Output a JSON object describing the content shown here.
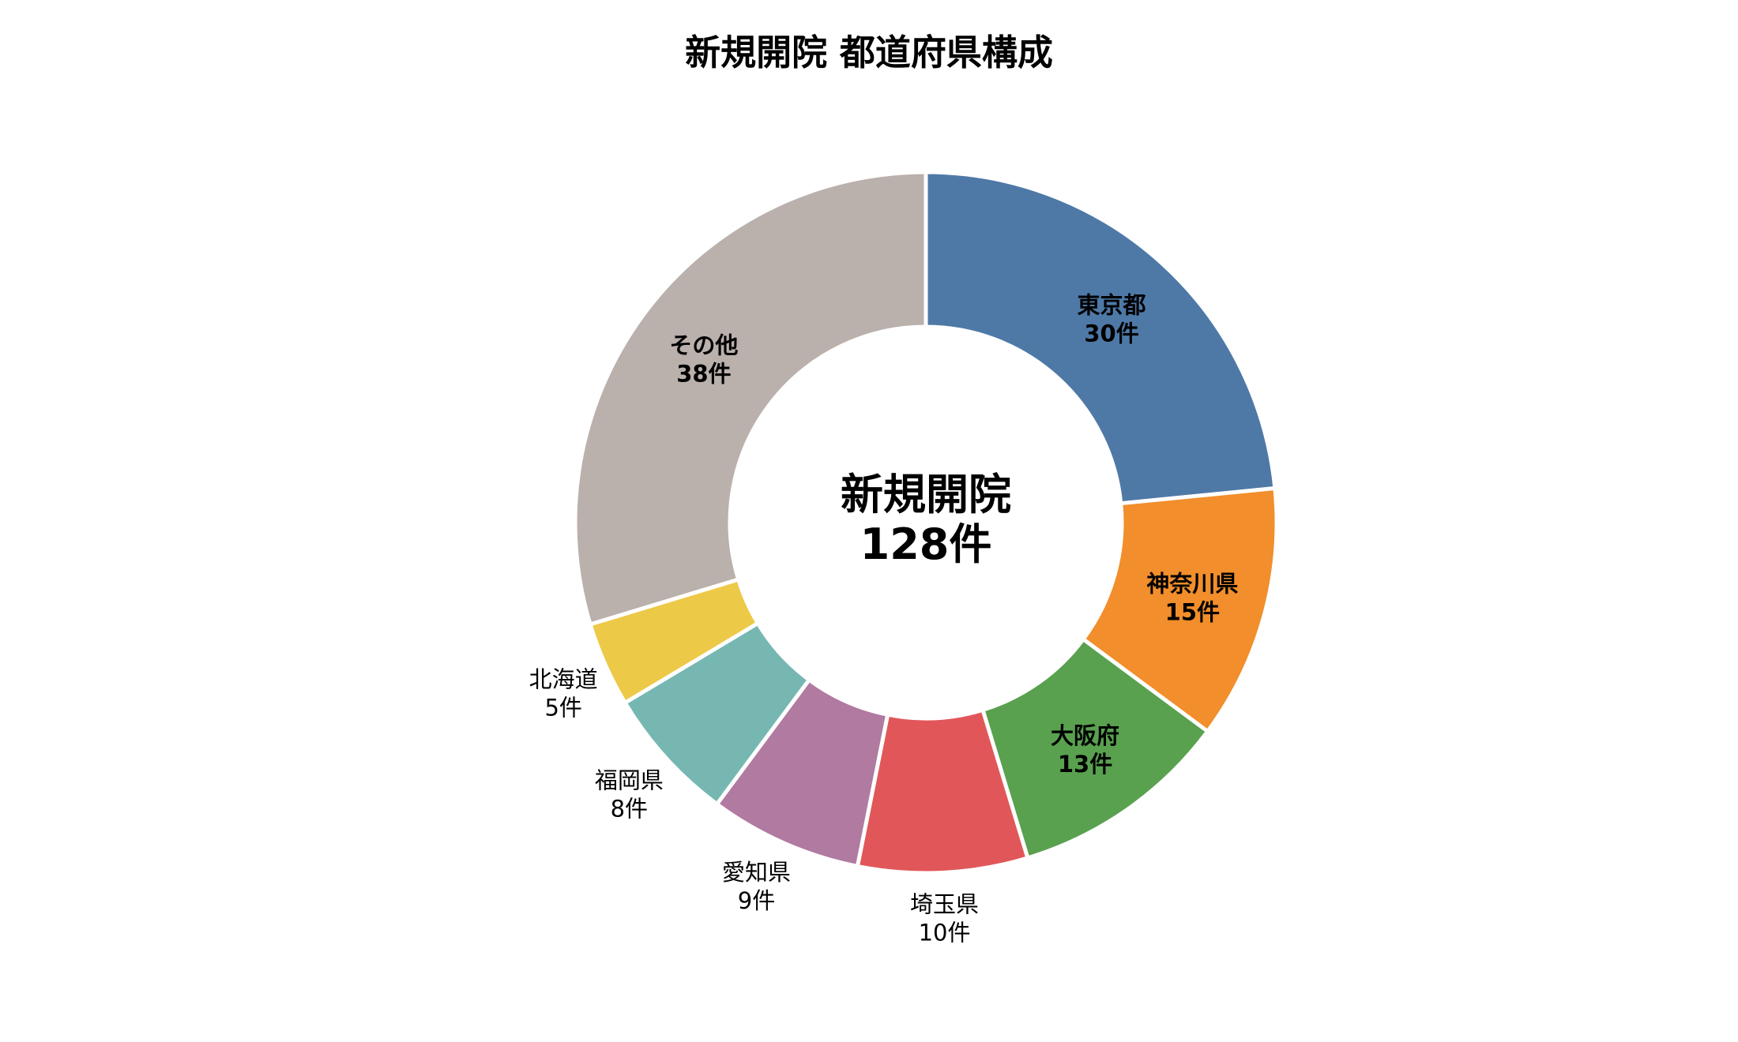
{
  "chart_data": {
    "type": "pie",
    "title": "新規開院 都道府県構成",
    "center_label_line1": "新規開院",
    "center_label_line2": "128件",
    "total": 128,
    "unit": "件",
    "start_angle_deg": 0,
    "direction": "clockwise",
    "slices": [
      {
        "label": "東京都",
        "value": 30,
        "value_label": "30件",
        "color": "#4E79A7",
        "label_inside": true
      },
      {
        "label": "神奈川県",
        "value": 15,
        "value_label": "15件",
        "color": "#F28E2B",
        "label_inside": true
      },
      {
        "label": "大阪府",
        "value": 13,
        "value_label": "13件",
        "color": "#59A14F",
        "label_inside": true
      },
      {
        "label": "埼玉県",
        "value": 10,
        "value_label": "10件",
        "color": "#E15759",
        "label_inside": false
      },
      {
        "label": "愛知県",
        "value": 9,
        "value_label": "9件",
        "color": "#B07AA1",
        "label_inside": false
      },
      {
        "label": "福岡県",
        "value": 8,
        "value_label": "8件",
        "color": "#76B7B2",
        "label_inside": false
      },
      {
        "label": "北海道",
        "value": 5,
        "value_label": "5件",
        "color": "#EDC948",
        "label_inside": false
      },
      {
        "label": "その他",
        "value": 38,
        "value_label": "38件",
        "color": "#BAB0AC",
        "label_inside": true
      }
    ]
  }
}
